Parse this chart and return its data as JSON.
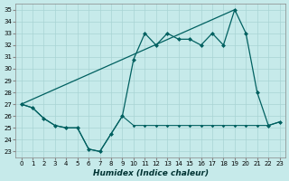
{
  "xlabel": "Humidex (Indice chaleur)",
  "xlim": [
    -0.5,
    23.5
  ],
  "ylim": [
    22.5,
    35.5
  ],
  "yticks": [
    23,
    24,
    25,
    26,
    27,
    28,
    29,
    30,
    31,
    32,
    33,
    34,
    35
  ],
  "xticks": [
    0,
    1,
    2,
    3,
    4,
    5,
    6,
    7,
    8,
    9,
    10,
    11,
    12,
    13,
    14,
    15,
    16,
    17,
    18,
    19,
    20,
    21,
    22,
    23
  ],
  "background_color": "#c6eaea",
  "grid_color": "#a8d4d4",
  "line_color": "#006060",
  "line_main": [
    27.0,
    26.7,
    25.8,
    25.2,
    25.0,
    25.0,
    23.2,
    23.0,
    24.5,
    26.0,
    30.8,
    33.0,
    32.0,
    33.0,
    32.5,
    32.5,
    32.0,
    33.0,
    32.0,
    35.0,
    33.0,
    28.0,
    25.2,
    25.5
  ],
  "line_low": [
    27.0,
    26.7,
    25.8,
    25.2,
    25.0,
    25.0,
    23.2,
    23.0,
    24.5,
    26.0,
    25.2,
    25.2,
    25.2,
    25.2,
    25.2,
    25.2,
    25.2,
    25.2,
    25.2,
    25.2,
    25.2,
    25.2,
    25.2,
    25.5
  ],
  "trend_x": [
    0,
    19
  ],
  "trend_y": [
    27.0,
    35.0
  ]
}
